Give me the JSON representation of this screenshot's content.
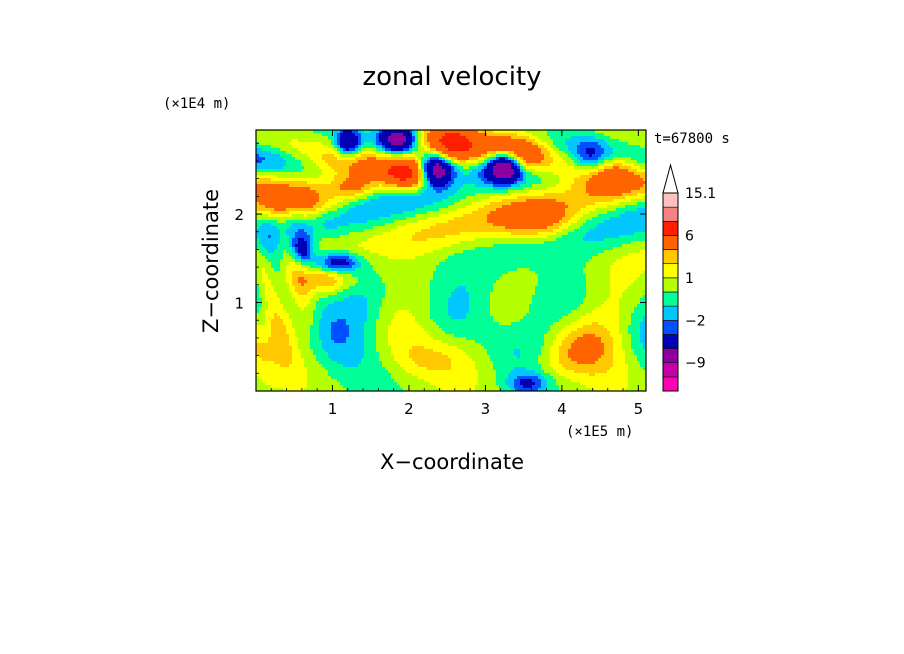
{
  "chart_data": {
    "type": "heatmap",
    "title": "zonal velocity",
    "xlabel": "X−coordinate",
    "ylabel": "Z−coordinate",
    "x_unit_label": "(×1E5 m)",
    "y_unit_label": "(×1E4 m)",
    "time_label": "t=67800 s",
    "xlim": [
      0,
      5.1
    ],
    "ylim": [
      0,
      2.95
    ],
    "x_ticks": [
      1,
      2,
      3,
      4,
      5
    ],
    "y_ticks": [
      1,
      2
    ],
    "x_tick_labels": [
      "1",
      "2",
      "3",
      "4",
      "5"
    ],
    "y_tick_labels": [
      "1",
      "2"
    ],
    "colorbar": {
      "levels": [
        -15,
        -12,
        -9,
        -6,
        -3,
        -2,
        -1,
        0,
        1,
        2,
        3,
        6,
        9,
        12,
        15.1
      ],
      "colors": [
        "#ff00b4",
        "#c800aa",
        "#8c00a0",
        "#0000b4",
        "#0050ff",
        "#00c8ff",
        "#00ff96",
        "#b4ff00",
        "#ffff00",
        "#ffc800",
        "#ff6400",
        "#ff1e00",
        "#f58282",
        "#ffc0c0"
      ],
      "extend": "max",
      "tick_labels": [
        "15.1",
        "6",
        "1",
        "−2",
        "−9"
      ],
      "tick_values": [
        15.1,
        6,
        1,
        -2,
        -9
      ]
    },
    "grid": false
  }
}
